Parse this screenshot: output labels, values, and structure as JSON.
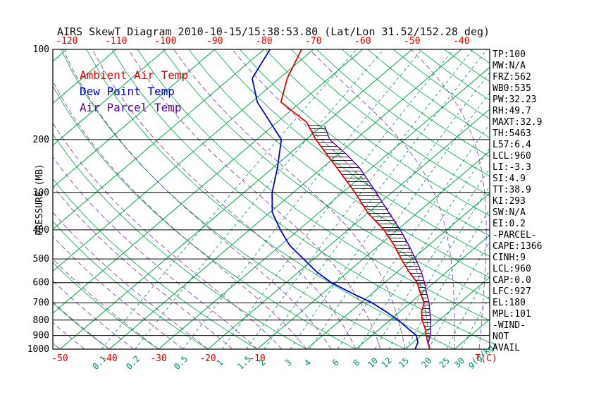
{
  "title": "AIRS SkewT Diagram 2010-10-15/15:38:53.80 (Lat/Lon 31.52/152.28 deg)",
  "colors": {
    "background_green": "#00a843",
    "mixing_teal": "#008877",
    "moist_violet": "#6a1ab0",
    "tick_red": "#e00000",
    "axis_black": "#000000"
  },
  "legend": [
    {
      "label": "Ambient Air Temp",
      "color": "#e00000"
    },
    {
      "label": "Dew Point Temp",
      "color": "#0000cc"
    },
    {
      "label": "Air Parcel Temp",
      "color": "#5a00aa"
    }
  ],
  "stats": [
    "TP:100",
    "MW:N/A",
    "FRZ:562",
    "WB0:535",
    "PW:32.23",
    "RH:49.7",
    "MAXT:32.9",
    "TH:5463",
    "L57:6.4",
    "LCL:960",
    "LI:-3.3",
    "SI:4.9",
    "TT:38.9",
    "KI:293",
    "SW:N/A",
    "EI:0.2",
    "-PARCEL-",
    "CAPE:1366",
    "CINH:9",
    "LCL:960",
    "CAP:0.0",
    "LFC:927",
    "EL:180",
    "MPL:101",
    "-WIND-",
    "NOT",
    "AVAIL"
  ],
  "chart_data": {
    "type": "line",
    "title": "AIRS SkewT Diagram 2010-10-15/15:38:53.80 (Lat/Lon 31.52/152.28 deg)",
    "xlabel": "T(C)",
    "ylabel": "PRESSURE (MB)",
    "y_scale": "log",
    "ylim": [
      1000,
      100
    ],
    "pressure_ticks": [
      100,
      200,
      300,
      400,
      500,
      600,
      700,
      800,
      900,
      1000
    ],
    "top_temp_ticks": [
      -120,
      -110,
      -100,
      -90,
      -80,
      -70,
      -60,
      -50,
      -40
    ],
    "bottom_temp_ticks": [
      -50,
      -40,
      -30,
      -20,
      -10
    ],
    "mixing_ratio": {
      "values": [
        0.1,
        0.2,
        0.5,
        1,
        1.5,
        2,
        3,
        4,
        6,
        8,
        10,
        12,
        15,
        20,
        25,
        30
      ],
      "unit": "g(g/kg)"
    },
    "series": [
      {
        "name": "Ambient Air Temp",
        "color": "#e00000",
        "points": [
          [
            1000,
            25
          ],
          [
            950,
            23
          ],
          [
            900,
            21
          ],
          [
            850,
            19
          ],
          [
            800,
            16.5
          ],
          [
            750,
            14.4
          ],
          [
            700,
            12.8
          ],
          [
            650,
            9.7
          ],
          [
            600,
            6.6
          ],
          [
            550,
            2.2
          ],
          [
            500,
            -2.3
          ],
          [
            450,
            -7
          ],
          [
            400,
            -12.7
          ],
          [
            350,
            -20.2
          ],
          [
            300,
            -27.5
          ],
          [
            250,
            -36.7
          ],
          [
            200,
            -48
          ],
          [
            175,
            -54
          ],
          [
            150,
            -64
          ],
          [
            125,
            -68.4
          ],
          [
            100,
            -72.4
          ]
        ]
      },
      {
        "name": "Dew Point Temp",
        "color": "#0000cc",
        "points": [
          [
            1000,
            22
          ],
          [
            950,
            21
          ],
          [
            900,
            19
          ],
          [
            850,
            15.4
          ],
          [
            800,
            11.7
          ],
          [
            750,
            7.2
          ],
          [
            700,
            2.2
          ],
          [
            650,
            -4.2
          ],
          [
            600,
            -10.8
          ],
          [
            550,
            -16.6
          ],
          [
            500,
            -22.1
          ],
          [
            450,
            -28.2
          ],
          [
            400,
            -33.7
          ],
          [
            350,
            -39.5
          ],
          [
            300,
            -44.3
          ],
          [
            250,
            -48.9
          ],
          [
            200,
            -55
          ],
          [
            175,
            -61.4
          ],
          [
            150,
            -68.8
          ],
          [
            125,
            -75.5
          ],
          [
            100,
            -78.8
          ]
        ]
      },
      {
        "name": "Air Parcel Temp",
        "color": "#5a00aa",
        "points": [
          [
            960,
            23.4
          ],
          [
            900,
            21.8
          ],
          [
            850,
            20.1
          ],
          [
            800,
            18.3
          ],
          [
            750,
            16.1
          ],
          [
            700,
            13.8
          ],
          [
            650,
            11
          ],
          [
            600,
            8.1
          ],
          [
            550,
            4.7
          ],
          [
            500,
            0.6
          ],
          [
            450,
            -4
          ],
          [
            400,
            -9.4
          ],
          [
            350,
            -15.9
          ],
          [
            300,
            -23.2
          ],
          [
            250,
            -32.1
          ],
          [
            225,
            -38
          ],
          [
            200,
            -45.2
          ],
          [
            180,
            -49.5
          ]
        ]
      }
    ],
    "hatch_between": [
      "Air Parcel Temp",
      "Ambient Air Temp"
    ]
  }
}
